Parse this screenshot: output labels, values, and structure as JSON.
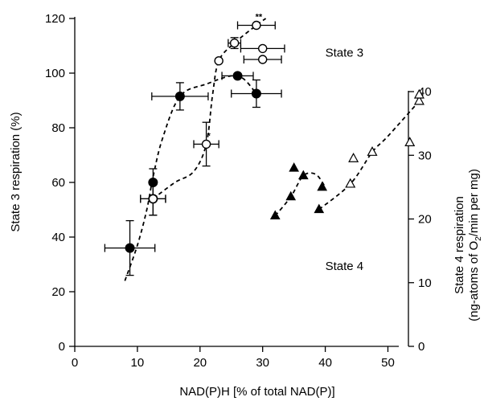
{
  "chart_data": {
    "type": "scatter",
    "xlabel": "NAD(P)H [% of total NAD(P)]",
    "ylabel_left": "State 3 respiration (%)",
    "ylabel_right_line1": "State 4 respiration",
    "ylabel_right_line2_pre": "(ng-atoms of O",
    "ylabel_right_line2_sub": "2",
    "ylabel_right_line2_post": "/min per mg)",
    "xlim": [
      0,
      57
    ],
    "xticks": [
      0,
      10,
      20,
      30,
      40,
      50
    ],
    "ylim_left": [
      0,
      120
    ],
    "yticks_left": [
      0,
      20,
      40,
      60,
      80,
      100,
      120
    ],
    "ylim_right": [
      0,
      40
    ],
    "yticks_right": [
      0,
      10,
      20,
      30,
      40
    ],
    "annotations": [
      {
        "text": "State 3",
        "x": 40,
        "y": 106
      },
      {
        "text": "State 4",
        "x": 40,
        "y": 28
      }
    ],
    "series": [
      {
        "marker": "filled-circle",
        "axis": "left",
        "points": [
          {
            "x": 8.8,
            "y": 36,
            "xerr": 4,
            "yerr": 10
          },
          {
            "x": 12.5,
            "y": 54,
            "xerr": 2,
            "yerr": 6
          },
          {
            "x": 12.5,
            "y": 60,
            "xerr": 0,
            "yerr": 5
          },
          {
            "x": 16.8,
            "y": 91.5,
            "xerr": 4.5,
            "yerr": 5
          },
          {
            "x": 26,
            "y": 99,
            "xerr": 2.5,
            "yerr": 0
          },
          {
            "x": 29,
            "y": 92.5,
            "xerr": 4,
            "yerr": 5
          }
        ],
        "curve": [
          [
            8,
            24
          ],
          [
            10,
            37
          ],
          [
            11.5,
            50
          ],
          [
            12.5,
            62
          ],
          [
            14,
            76
          ],
          [
            16.8,
            91.5
          ],
          [
            21,
            96
          ],
          [
            26,
            99
          ],
          [
            29,
            92.5
          ]
        ]
      },
      {
        "marker": "open-circle",
        "axis": "left",
        "points": [
          {
            "x": 12.5,
            "y": 54,
            "xerr": 2,
            "yerr": 6
          },
          {
            "x": 21,
            "y": 74,
            "xerr": 2,
            "yerr": 8
          },
          {
            "x": 23,
            "y": 104.5,
            "xerr": 0,
            "yerr": 0
          },
          {
            "x": 25.5,
            "y": 111,
            "xerr": 1,
            "yerr": 2
          },
          {
            "x": 29,
            "y": 117.5,
            "xerr": 3,
            "yerr": 0
          },
          {
            "x": 30,
            "y": 109,
            "xerr": 3.5,
            "yerr": 0
          },
          {
            "x": 30,
            "y": 105,
            "xerr": 3,
            "yerr": 0
          }
        ],
        "curve": [
          [
            12.5,
            54
          ],
          [
            16,
            60
          ],
          [
            19,
            64
          ],
          [
            21,
            74
          ],
          [
            22,
            92
          ],
          [
            23,
            104.5
          ],
          [
            25.5,
            111
          ],
          [
            29,
            117.5
          ],
          [
            30.5,
            120
          ]
        ]
      },
      {
        "marker": "filled-triangle",
        "axis": "right",
        "points": [
          {
            "x": 32,
            "y": 20.5
          },
          {
            "x": 34.5,
            "y": 23.5
          },
          {
            "x": 35,
            "y": 28
          },
          {
            "x": 36.5,
            "y": 26.8
          },
          {
            "x": 39.5,
            "y": 25
          },
          {
            "x": 39,
            "y": 21.5
          }
        ],
        "curve": [
          [
            32,
            20.5
          ],
          [
            34.5,
            23.5
          ],
          [
            36.5,
            26.8
          ],
          [
            38.5,
            27
          ],
          [
            40,
            25
          ]
        ]
      },
      {
        "marker": "open-triangle",
        "axis": "right",
        "points": [
          {
            "x": 44,
            "y": 25.5
          },
          {
            "x": 44.5,
            "y": 29.5
          },
          {
            "x": 47.5,
            "y": 30.5
          },
          {
            "x": 53.5,
            "y": 32
          },
          {
            "x": 55,
            "y": 38.5
          },
          {
            "x": 55,
            "y": 39.5
          }
        ],
        "curve": [
          [
            39,
            21.5
          ],
          [
            44,
            25.5
          ],
          [
            47.5,
            30.5
          ],
          [
            50,
            33
          ],
          [
            55,
            38.5
          ]
        ]
      }
    ],
    "significance": [
      {
        "text": "**",
        "x": 29,
        "y": 117.5
      },
      {
        "text": "*",
        "x": 21,
        "y": 74
      }
    ]
  }
}
